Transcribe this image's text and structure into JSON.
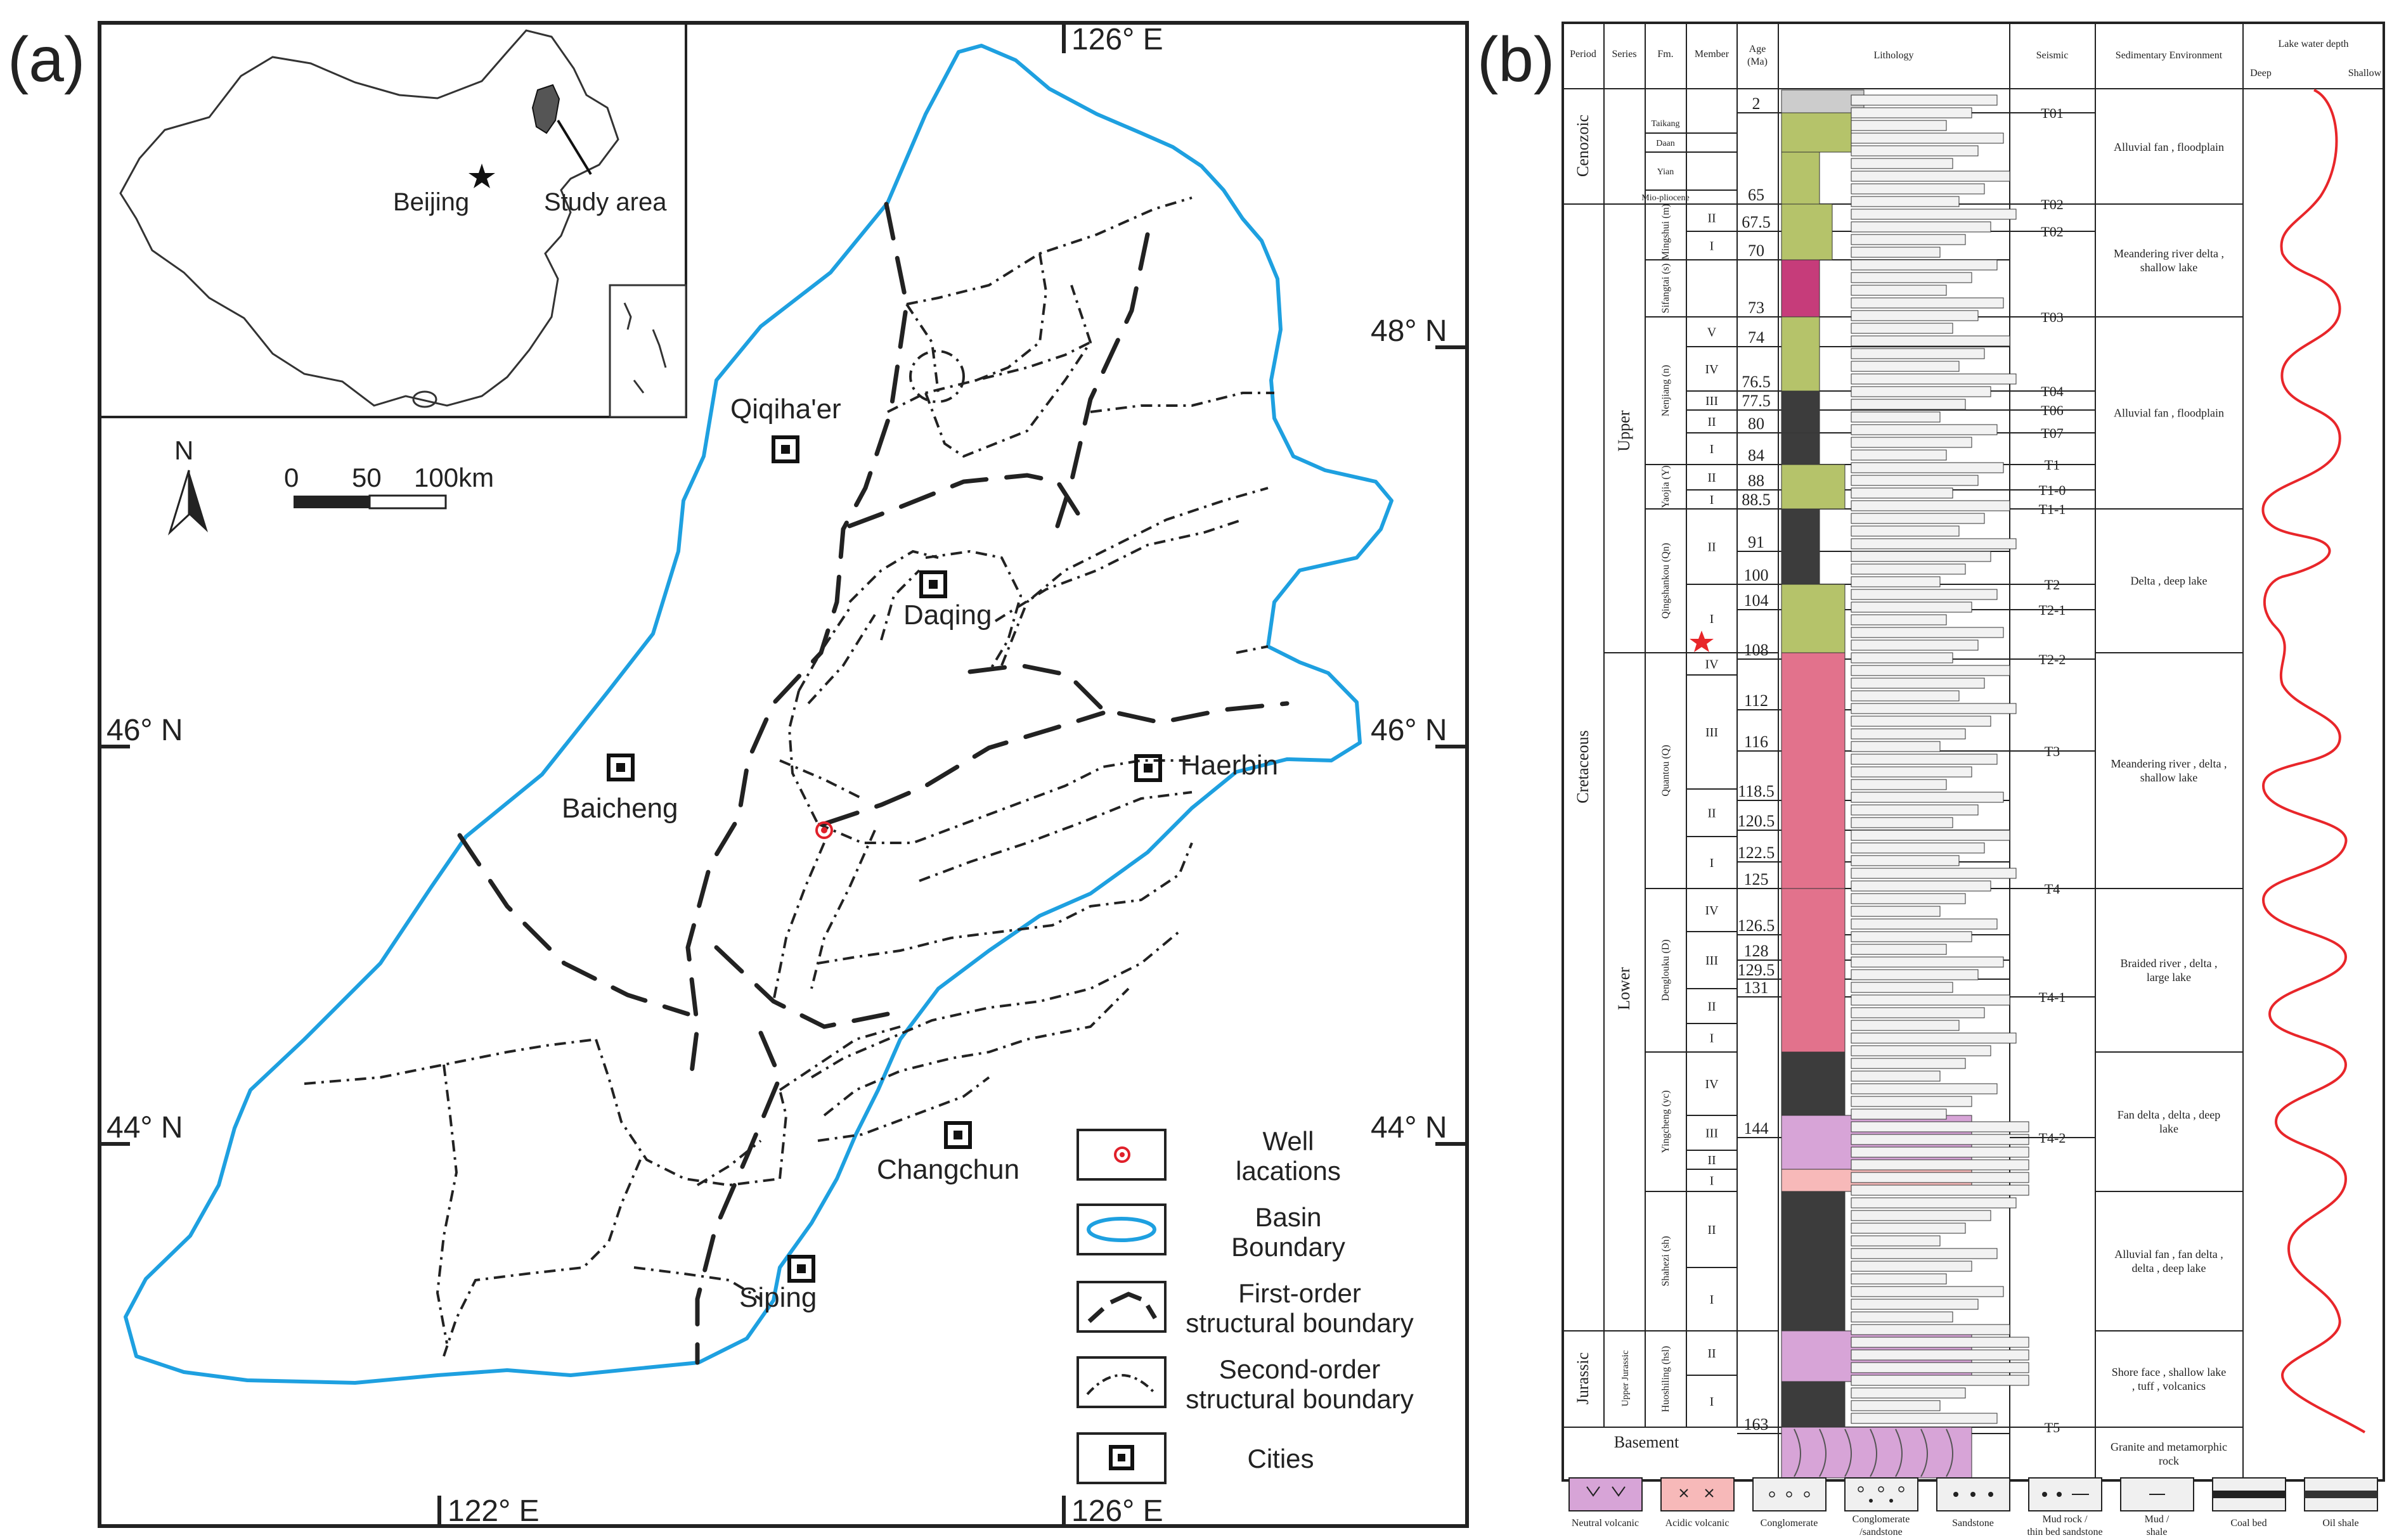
{
  "panel_a": {
    "label": "(a)",
    "lon_top": "126° E",
    "lon_bottom_left": "122° E",
    "lon_bottom_right": "126° E",
    "lat_48": "48° N",
    "lat_46_left": "46° N",
    "lat_46_right": "46° N",
    "lat_44_left": "44° N",
    "lat_44_right": "44° N",
    "north": "N",
    "scale_labels": [
      "0",
      "50",
      "100km"
    ],
    "inset": {
      "beijing": "Beijing",
      "study_area": "Study area"
    },
    "cities": [
      "Qiqiha'er",
      "Daqing",
      "Baicheng",
      "Haerbin",
      "Changchun",
      "Siping"
    ],
    "legend": [
      {
        "key": "well",
        "lines": [
          "Well",
          "lacations"
        ]
      },
      {
        "key": "basin",
        "lines": [
          "Basin",
          "Boundary"
        ]
      },
      {
        "key": "first",
        "lines": [
          "First-order",
          "structural boundary"
        ]
      },
      {
        "key": "second",
        "lines": [
          "Second-order",
          "structural boundary"
        ]
      },
      {
        "key": "city",
        "lines": [
          "Cities"
        ]
      }
    ],
    "colors": {
      "basin_boundary": "#1ea0e0",
      "well": "#e0202a"
    }
  },
  "panel_b": {
    "label": "(b)",
    "headers": {
      "period": "Period",
      "series": "Series",
      "fm": "Fm.",
      "member": "Member",
      "age1": "Age",
      "age2": "(Ma)",
      "lithology": "Lithology",
      "seismic": "Seismic",
      "env": "Sedimentary Environment",
      "lake": "Lake water depth",
      "deep": "Deep",
      "shallow": "Shallow"
    },
    "periods": [
      "Cenozoic",
      "Cretaceous",
      "Jurassic",
      "Basement"
    ],
    "series": [
      "Upper",
      "Lower",
      "Upper Jurassic"
    ],
    "formations": [
      "Taikang",
      "Daan",
      "Yian",
      "Mio-pliocene",
      "Mingshui (m)",
      "Sifangtai (s)",
      "Nenjiang (n)",
      "Yaojia (Y)",
      "Qingshankou (Qn)",
      "Quantou (Q)",
      "Denglouku (D)",
      "Yingcheng (yc)",
      "Shahezi (sh)",
      "Huoshiling (hsl)"
    ],
    "members": [
      "II",
      "I",
      "V",
      "IV",
      "III",
      "II",
      "I",
      "II",
      "I",
      "II",
      "I",
      "IV",
      "III",
      "II",
      "I",
      "IV",
      "III",
      "II",
      "I",
      "IV",
      "III",
      "II",
      "I",
      "II",
      "I",
      "II",
      "I"
    ],
    "ages": [
      "2",
      "65",
      "67.5",
      "70",
      "73",
      "74",
      "76.5",
      "77.5",
      "80",
      "84",
      "88",
      "88.5",
      "91",
      "100",
      "104",
      "108",
      "112",
      "116",
      "118.5",
      "120.5",
      "122.5",
      "125",
      "126.5",
      "128",
      "129.5",
      "131",
      "144",
      "163"
    ],
    "seismic": [
      "T01",
      "T02",
      "T02",
      "T03",
      "T04",
      "T06",
      "T07",
      "T1",
      "T1-0",
      "T1-1",
      "T2",
      "T2-1",
      "T2-2",
      "T3",
      "T4",
      "T4-1",
      "T4-2",
      "T5"
    ],
    "environments": [
      "Alluvial fan , floodplain",
      "Meandering river delta , shallow lake",
      "Alluvial fan , floodplain",
      "Delta , deep lake",
      "Meandering river , delta , shallow lake",
      "Braided river , delta , large lake",
      "Fan delta , delta , deep lake",
      "Alluvial fan , fan delta , delta , deep lake",
      "Shore face , shallow lake , tuff , volcanics",
      "Granite and metamorphic rock"
    ],
    "legend": [
      "Neutral volcanic",
      "Acidic volcanic",
      "Conglomerate",
      "Conglomerate /sandstone",
      "Sandstone",
      "Mud rock / thin bed sandstone",
      "Mud / shale",
      "Coal bed",
      "Oil shale"
    ],
    "colors": {
      "green": "#b5c36a",
      "magenta": "#c63c7a",
      "pink": "#e2728c",
      "dark": "#3c3c3c",
      "light_pink": "#f7b9b9",
      "violet": "#d7a4d7",
      "curve": "#e8262a"
    }
  }
}
